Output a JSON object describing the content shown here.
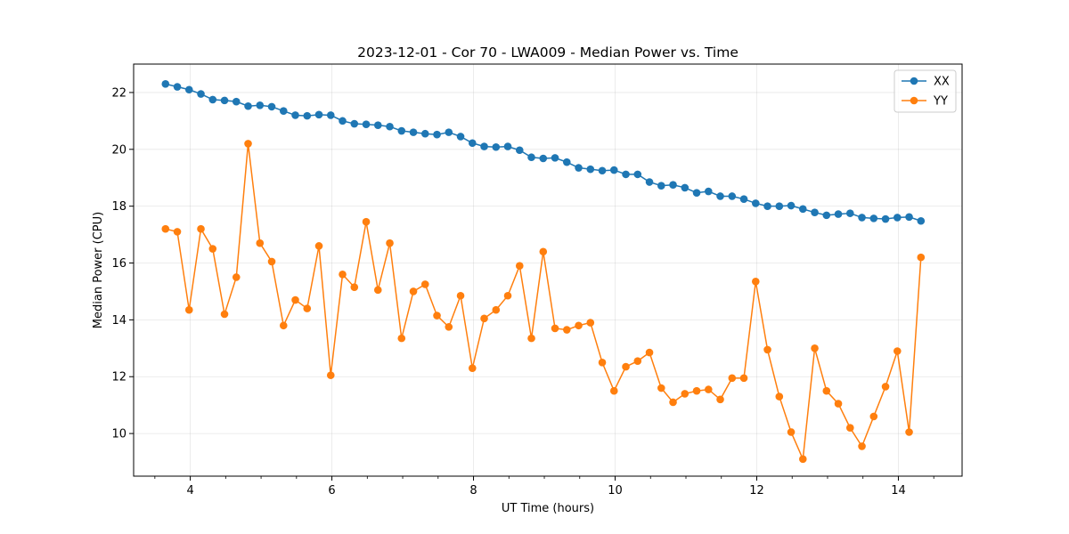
{
  "chart_data": {
    "type": "line",
    "title": "2023-12-01 - Cor 70 - LWA009 - Median Power vs. Time",
    "xlabel": "UT Time (hours)",
    "ylabel": "Median Power (CPU)",
    "xlim": [
      3.2,
      14.9
    ],
    "ylim": [
      8.5,
      23.0
    ],
    "x_ticks": [
      4,
      6,
      8,
      10,
      12,
      14
    ],
    "y_ticks": [
      10,
      12,
      14,
      16,
      18,
      20,
      22
    ],
    "x_tick_labels": [
      "4",
      "6",
      "8",
      "10",
      "12",
      "14"
    ],
    "y_tick_labels": [
      "10",
      "12",
      "14",
      "16",
      "18",
      "20",
      "22"
    ],
    "x_minor_step": 0.5,
    "grid": true,
    "legend_position": "top-right",
    "series": [
      {
        "name": "XX",
        "color": "#1f77b4",
        "values": [
          22.3,
          22.2,
          22.1,
          21.95,
          21.75,
          21.72,
          21.68,
          21.52,
          21.55,
          21.5,
          21.35,
          21.2,
          21.18,
          21.22,
          21.2,
          21.0,
          20.9,
          20.88,
          20.85,
          20.8,
          20.65,
          20.6,
          20.55,
          20.52,
          20.6,
          20.45,
          20.22,
          20.1,
          20.08,
          20.1,
          19.97,
          19.72,
          19.68,
          19.7,
          19.55,
          19.35,
          19.3,
          19.25,
          19.27,
          19.12,
          19.12,
          18.85,
          18.72,
          18.75,
          18.65,
          18.47,
          18.52,
          18.35,
          18.35,
          18.25,
          18.1,
          18.0,
          18.0,
          18.02,
          17.9,
          17.78,
          17.68,
          17.72,
          17.75,
          17.6,
          17.57,
          17.55,
          17.6,
          17.62,
          17.48
        ]
      },
      {
        "name": "YY",
        "color": "#ff7f0e",
        "values": [
          17.2,
          17.1,
          14.35,
          17.2,
          16.5,
          14.2,
          15.5,
          20.2,
          16.7,
          16.05,
          13.8,
          14.7,
          14.4,
          16.6,
          12.05,
          15.6,
          15.15,
          17.45,
          15.05,
          16.7,
          13.35,
          15.0,
          15.25,
          14.15,
          13.75,
          14.85,
          12.3,
          14.05,
          14.35,
          14.85,
          15.9,
          13.35,
          16.4,
          13.7,
          13.65,
          13.8,
          13.9,
          12.5,
          11.5,
          12.35,
          12.55,
          12.85,
          11.6,
          11.1,
          11.4,
          11.5,
          11.55,
          11.2,
          11.95,
          11.95,
          15.35,
          12.95,
          11.3,
          10.05,
          9.1,
          13.0,
          11.5,
          11.05,
          10.2,
          9.55,
          10.6,
          11.65,
          12.9,
          10.05,
          16.2
        ]
      }
    ],
    "x_start": 3.65,
    "x_step": 0.1667
  }
}
